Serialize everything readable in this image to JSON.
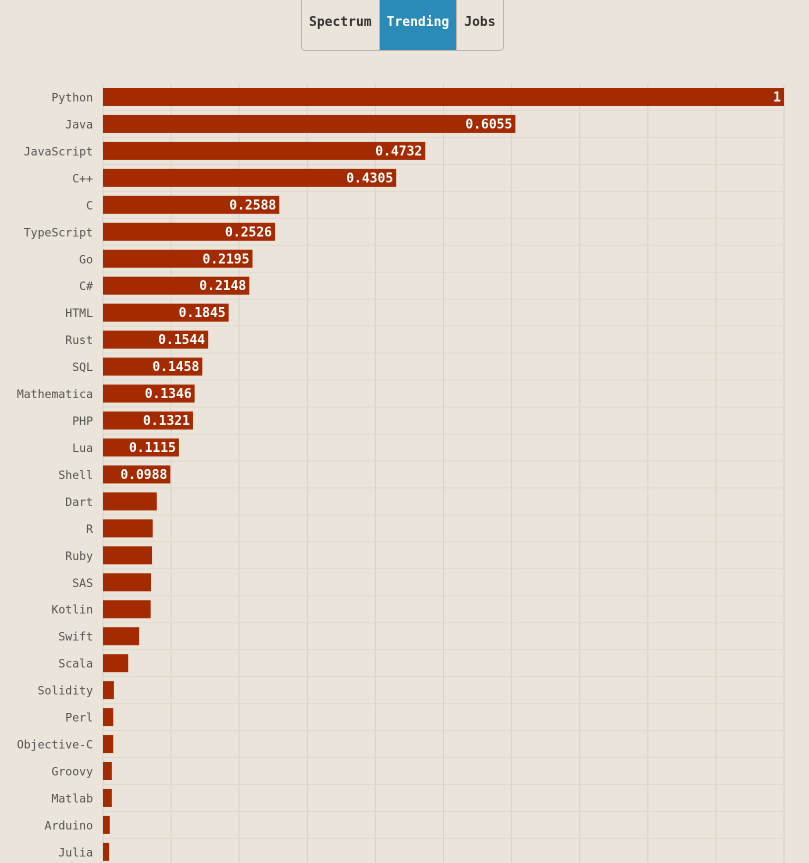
{
  "tabs": [
    "Spectrum",
    "Trending",
    "Jobs"
  ],
  "active_tab": 1,
  "chart_data": {
    "type": "hbar",
    "categories": [
      "Python",
      "Java",
      "JavaScript",
      "C++",
      "C",
      "TypeScript",
      "Go",
      "C#",
      "HTML",
      "Rust",
      "SQL",
      "Mathematica",
      "PHP",
      "Lua",
      "Shell",
      "Dart",
      "R",
      "Ruby",
      "SAS",
      "Kotlin",
      "Swift",
      "Scala",
      "Solidity",
      "Perl",
      "Objective-C",
      "Groovy",
      "Matlab",
      "Arduino",
      "Julia"
    ],
    "values": [
      1,
      0.6055,
      0.4732,
      0.4305,
      0.2588,
      0.2526,
      0.2195,
      0.2148,
      0.1845,
      0.1544,
      0.1458,
      0.1346,
      0.1321,
      0.1115,
      0.0988,
      0.079,
      0.073,
      0.072,
      0.0705,
      0.07,
      0.053,
      0.037,
      0.016,
      0.015,
      0.015,
      0.013,
      0.013,
      0.01,
      0.009
    ],
    "color": "#a42b00",
    "xlim": [
      0,
      1
    ],
    "xticks": [
      0,
      0.1,
      0.2,
      0.3,
      0.4,
      0.5,
      0.6,
      0.7,
      0.8,
      0.9,
      1
    ],
    "grid": true
  }
}
